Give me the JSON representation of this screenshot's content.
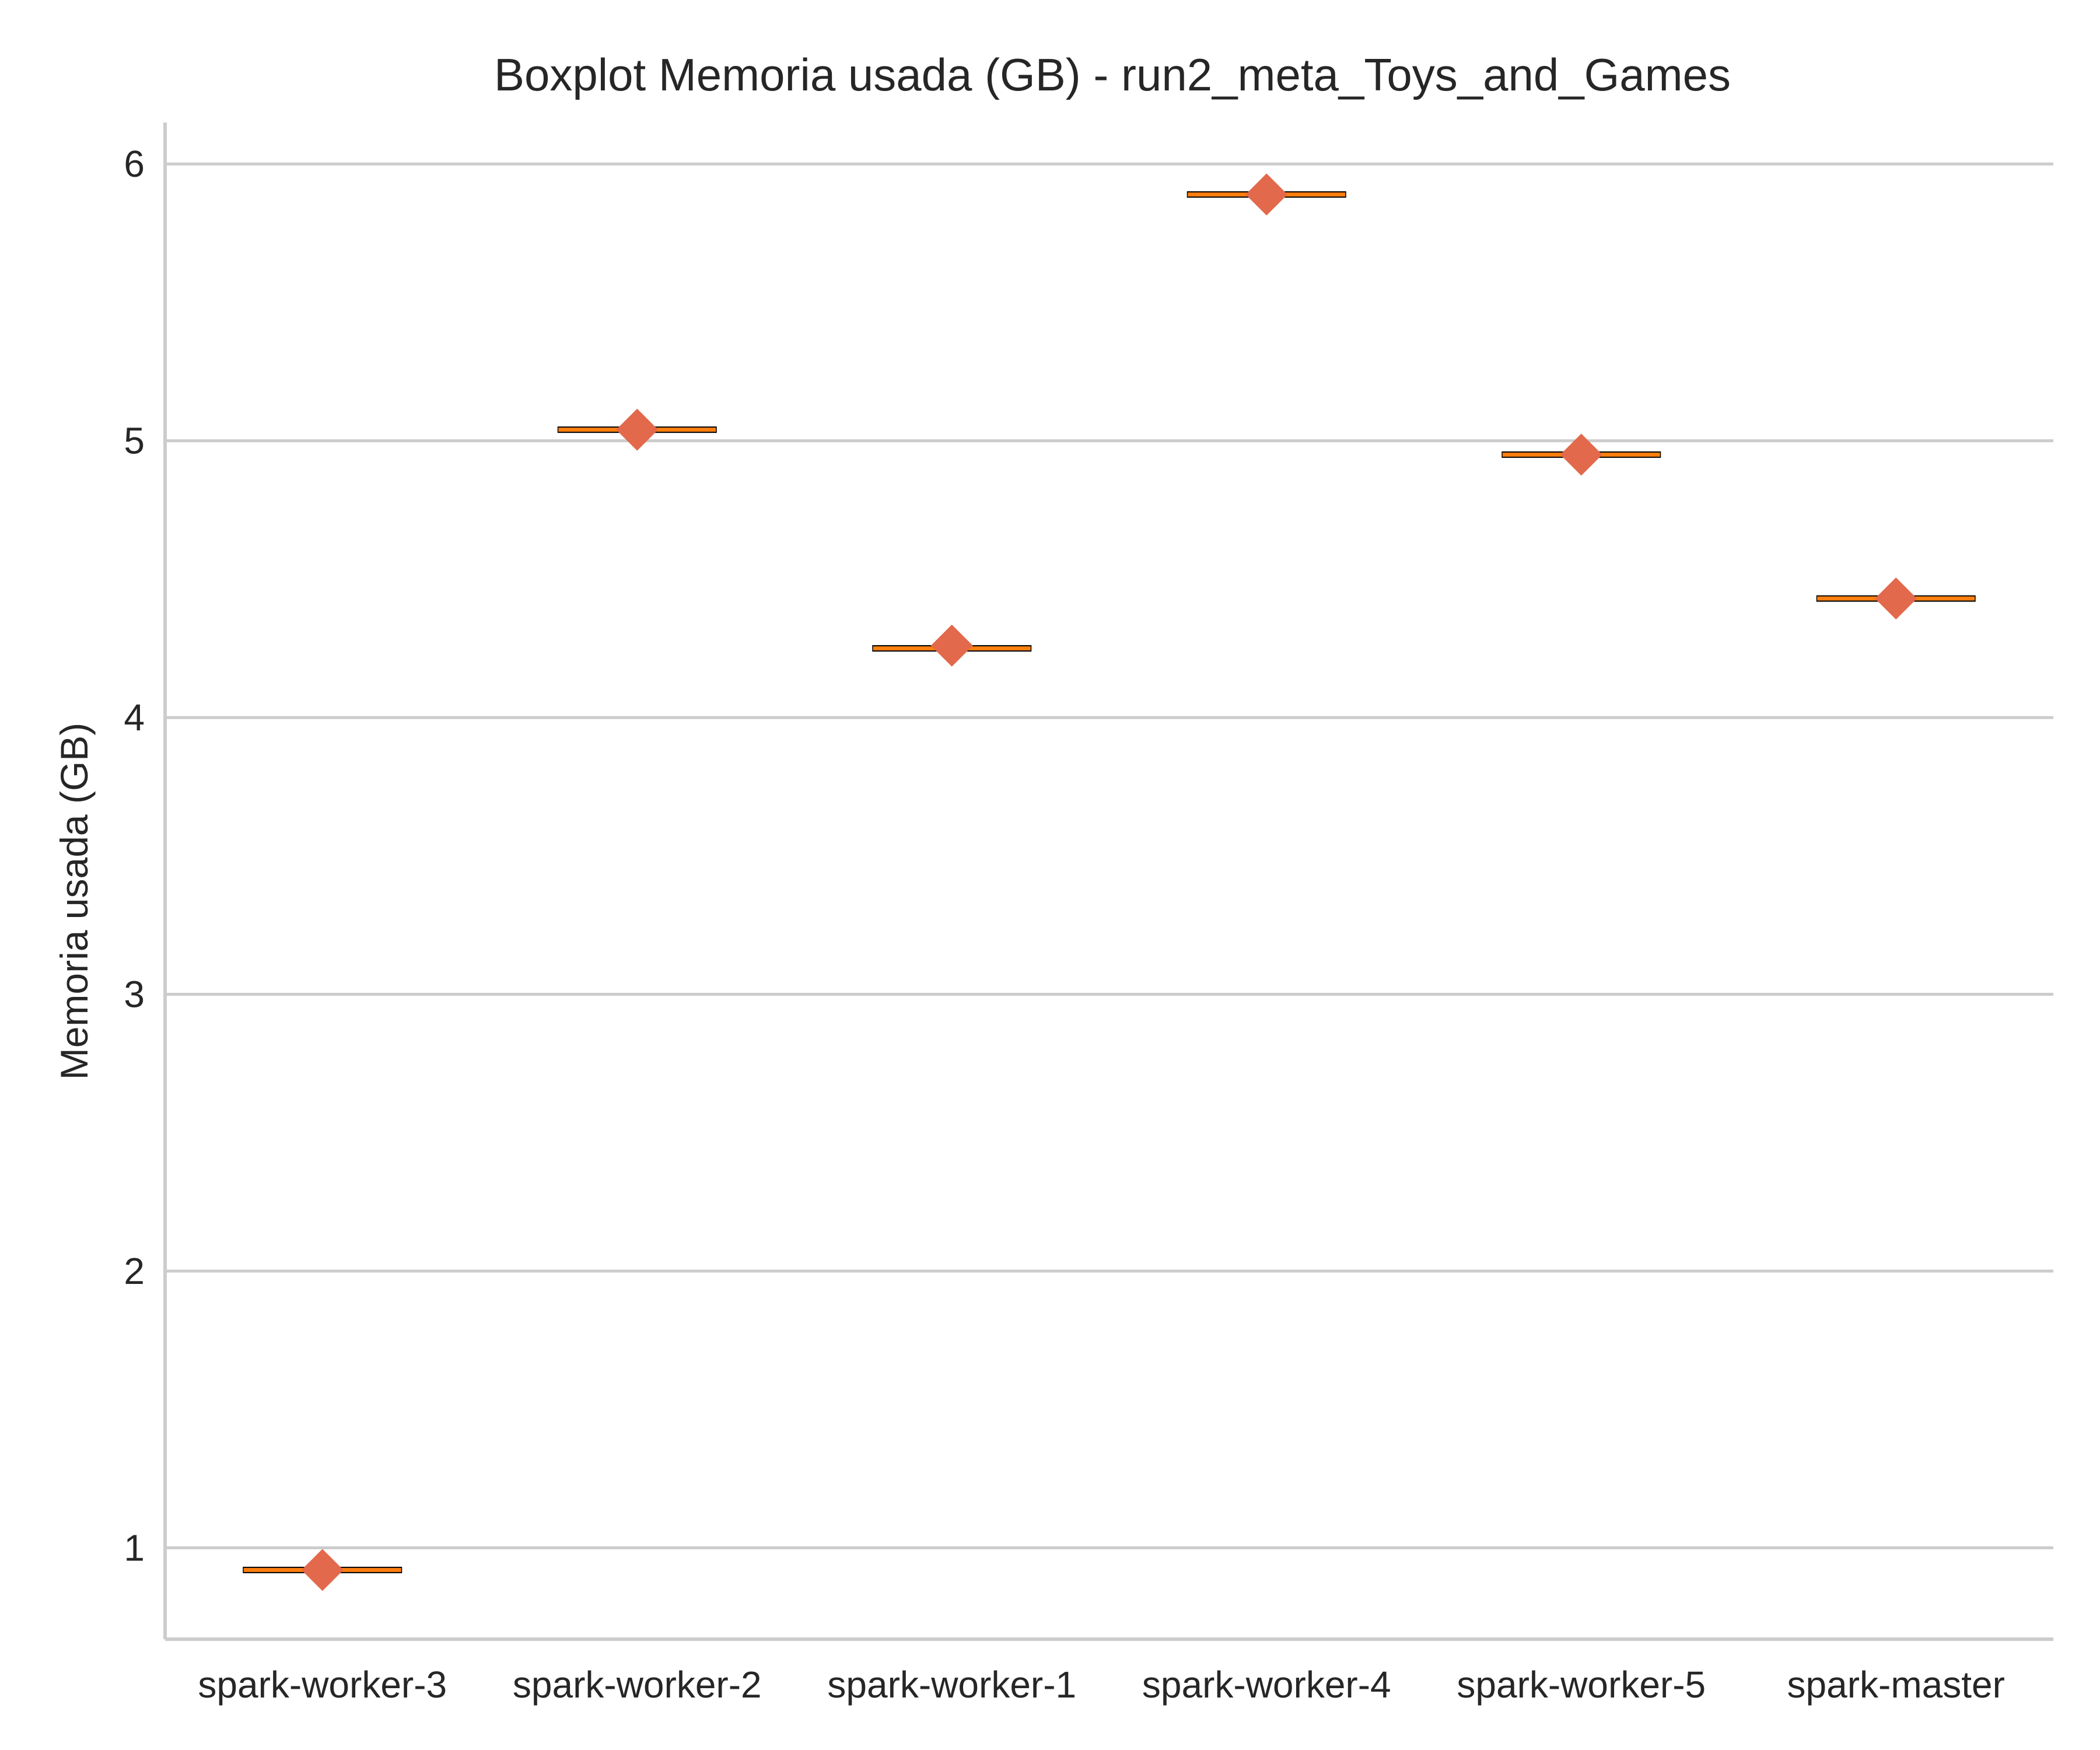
{
  "chart_data": {
    "type": "box",
    "title": "Boxplot Memoria usada (GB) - run2_meta_Toys_and_Games",
    "xlabel": "",
    "ylabel": "Memoria usada (GB)",
    "ylim": [
      0.67,
      6.15
    ],
    "yticks": [
      1,
      2,
      3,
      4,
      5,
      6
    ],
    "grid": "horizontal",
    "categories": [
      "spark-worker-3",
      "spark-worker-2",
      "spark-worker-1",
      "spark-worker-4",
      "spark-worker-5",
      "spark-master"
    ],
    "medians": [
      0.92,
      5.04,
      4.25,
      5.89,
      4.95,
      4.43
    ],
    "means": [
      0.92,
      5.04,
      4.26,
      5.89,
      4.95,
      4.43
    ],
    "colors": {
      "median_line": "#ff7f0e",
      "mean_marker": "#e2694b",
      "box_edge": "#000000",
      "grid": "#cccccc",
      "axis": "#cccccc"
    }
  }
}
